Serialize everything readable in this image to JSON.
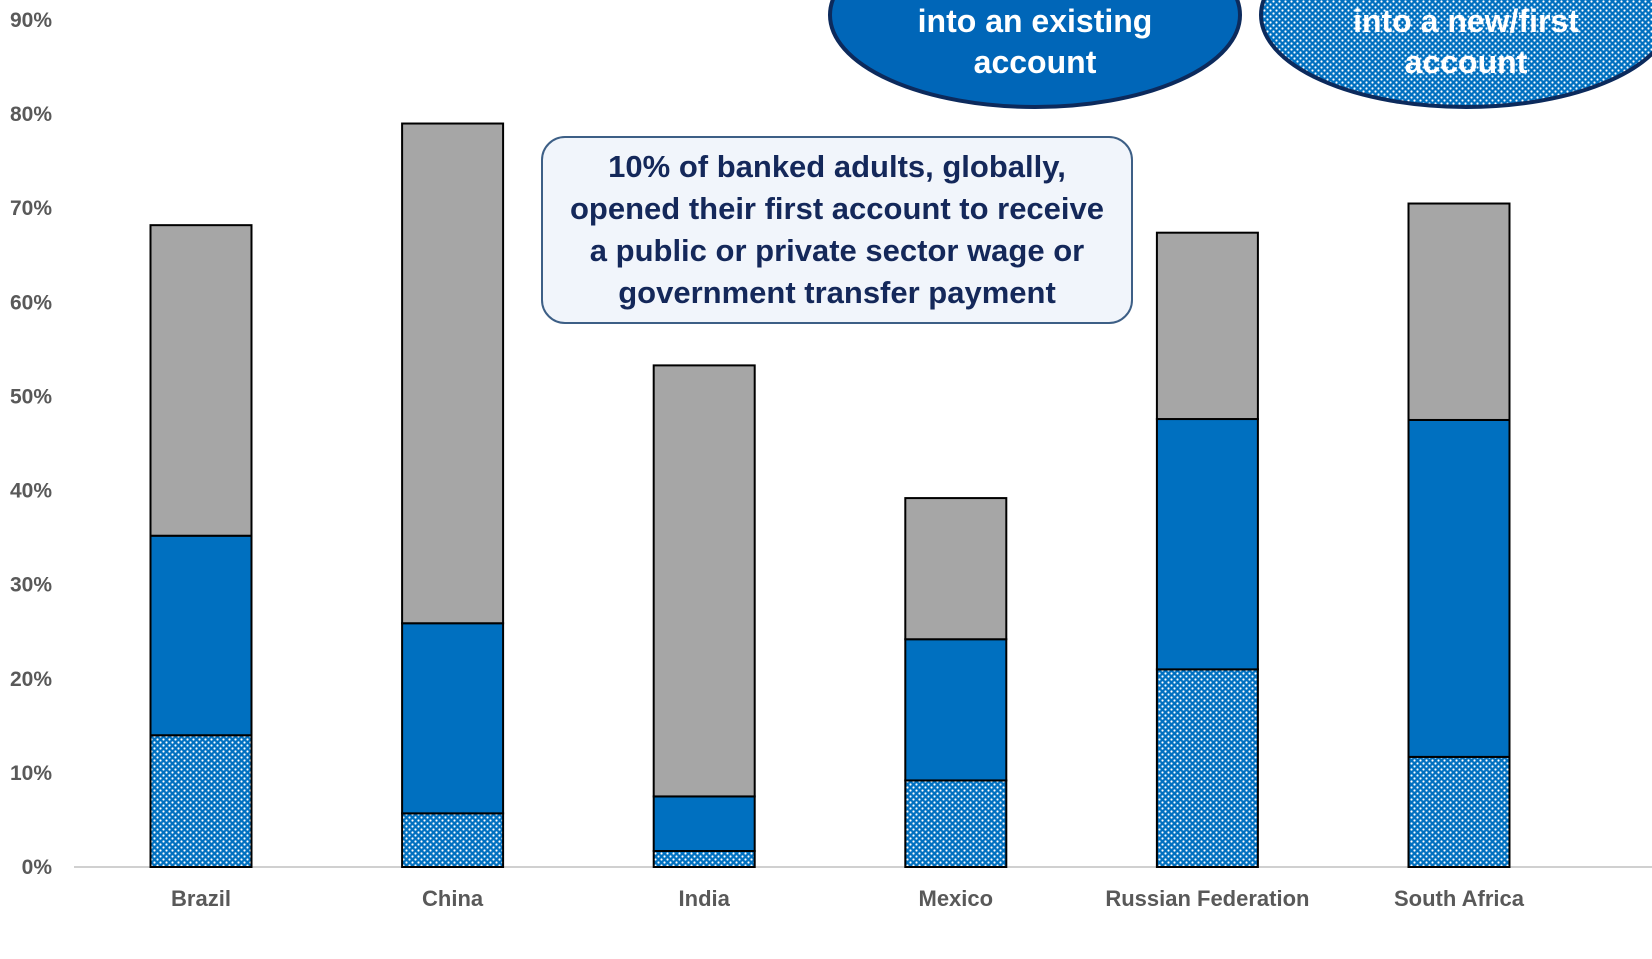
{
  "chart_data": {
    "type": "bar",
    "stacked": true,
    "categories": [
      "Brazil",
      "China",
      "India",
      "Mexico",
      "Russian Federation",
      "South Africa"
    ],
    "series": [
      {
        "name": "",
        "values": [
          14,
          5.7,
          1.7,
          9.2,
          21,
          11.7
        ],
        "color": "#0070c0",
        "pattern": "dotted"
      },
      {
        "name": "",
        "values": [
          21.2,
          20.2,
          5.8,
          15,
          26.6,
          35.8
        ],
        "color": "#0070c0"
      },
      {
        "name": "",
        "values": [
          33,
          53.1,
          45.8,
          15,
          19.8,
          23
        ],
        "color": "#a6a6a6"
      }
    ],
    "ylim": [
      0,
      90
    ],
    "yticks": [
      "0%",
      "10%",
      "20%",
      "30%",
      "40%",
      "50%",
      "60%",
      "70%",
      "80%",
      "90%"
    ],
    "title": "",
    "xlabel": "",
    "ylabel": "",
    "legend_bubbles": [
      {
        "text_lines": [
          "into an existing",
          "account"
        ],
        "pattern": "solid"
      },
      {
        "text_lines": [
          "into a new/first",
          "account"
        ],
        "pattern": "dotted"
      }
    ],
    "annotation": "10% of banked adults, globally, opened their first account to receive a public or private sector wage or government transfer payment"
  }
}
